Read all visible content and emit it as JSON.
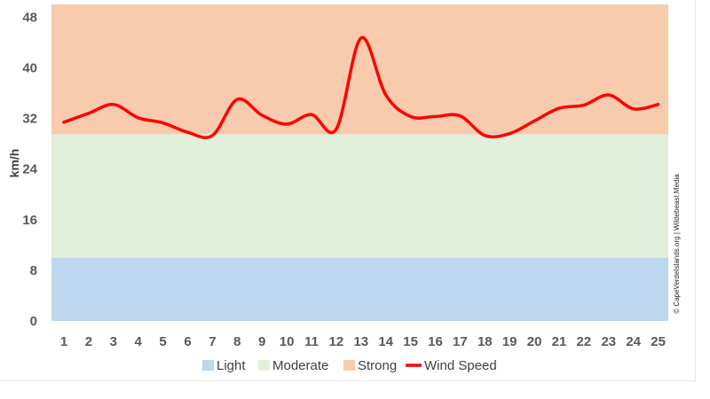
{
  "chart_data": {
    "type": "line",
    "ylabel": "km/h",
    "ylim": [
      0,
      50
    ],
    "yticks": [
      0,
      8,
      16,
      24,
      32,
      40,
      48
    ],
    "categories": [
      "1",
      "2",
      "3",
      "4",
      "5",
      "6",
      "7",
      "8",
      "9",
      "10",
      "11",
      "12",
      "13",
      "14",
      "15",
      "16",
      "17",
      "18",
      "19",
      "20",
      "21",
      "22",
      "23",
      "24",
      "25"
    ],
    "series": [
      {
        "name": "Wind Speed",
        "color": "#ff0000",
        "values": [
          31.4,
          32.8,
          34.2,
          32.1,
          31.3,
          29.8,
          29.3,
          35.0,
          32.5,
          31.1,
          32.6,
          30.3,
          44.7,
          35.7,
          32.3,
          32.3,
          32.4,
          29.3,
          29.6,
          31.6,
          33.6,
          34.1,
          35.7,
          33.5,
          34.2
        ]
      }
    ],
    "bands": [
      {
        "name": "Light",
        "from": 0,
        "to": 10,
        "color": "#bdd7ee"
      },
      {
        "name": "Moderate",
        "from": 10,
        "to": 29.5,
        "color": "#e2efda"
      },
      {
        "name": "Strong",
        "from": 29.5,
        "to": 50,
        "color": "#f8cbad"
      }
    ],
    "legend": {
      "position": "bottom",
      "items": [
        "Light",
        "Moderate",
        "Strong",
        "Wind Speed"
      ]
    },
    "credit": "© CapeVerdeIslands.org | Wildebeast Media",
    "grid": false
  }
}
